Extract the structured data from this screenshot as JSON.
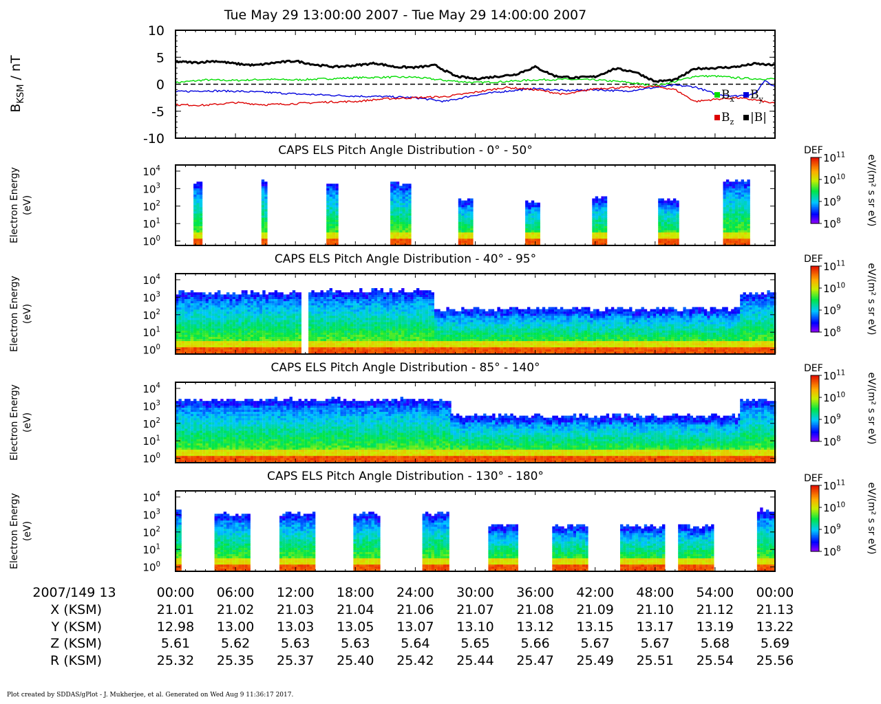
{
  "title": "Tue May 29 13:00:00 2007 - Tue May 29 14:00:00 2007",
  "footer": "Plot created by SDDAS/gPlot - J. Mukherjee, et al.  Generated on Wed Aug 9 11:36:17 2017.",
  "chart_data": [
    {
      "type": "line",
      "ylabel": "B_KSM / nT",
      "ylim": [
        -10,
        10
      ],
      "yticks": [
        10,
        5,
        0,
        -5,
        -10
      ],
      "xlim": [
        0,
        60
      ],
      "zero_line": "dashed",
      "legend": {
        "placement": "bottom-right",
        "entries": [
          "Bx",
          "By",
          "Bz",
          "|B|"
        ]
      },
      "series": [
        {
          "name": "Bx",
          "color": "#00dd00",
          "x": [
            0,
            3,
            6,
            9,
            12,
            15,
            18,
            21,
            24,
            27,
            30,
            33,
            36,
            39,
            42,
            45,
            48,
            50,
            52,
            54,
            56,
            58,
            60
          ],
          "values": [
            0.3,
            0.8,
            0.7,
            0.9,
            0.8,
            1.0,
            1.2,
            1.3,
            1.3,
            0.7,
            0.3,
            0.5,
            0.8,
            0.9,
            0.8,
            0.4,
            -0.3,
            0.5,
            1.5,
            1.5,
            1.2,
            1.0,
            1.0
          ]
        },
        {
          "name": "By",
          "color": "#0000dd",
          "x": [
            0,
            3,
            6,
            9,
            12,
            15,
            18,
            21,
            24,
            27,
            30,
            33,
            36,
            39,
            42,
            45,
            48,
            50,
            52,
            54,
            56,
            58,
            59,
            60
          ],
          "values": [
            -1.4,
            -1.2,
            -1.3,
            -1.5,
            -1.8,
            -2.0,
            -2.2,
            -2.3,
            -2.5,
            -3.2,
            -2.0,
            -1.3,
            -0.8,
            -1.2,
            -1.0,
            -1.3,
            -0.6,
            -0.2,
            -0.5,
            -1.8,
            -2.2,
            -1.8,
            0.8,
            -0.5
          ]
        },
        {
          "name": "Bz",
          "color": "#dd0000",
          "x": [
            0,
            3,
            6,
            9,
            12,
            15,
            18,
            21,
            24,
            27,
            30,
            33,
            36,
            39,
            42,
            45,
            48,
            50,
            52,
            54,
            56,
            58,
            60
          ],
          "values": [
            -3.8,
            -3.9,
            -3.4,
            -3.8,
            -3.6,
            -3.3,
            -3.2,
            -2.7,
            -2.5,
            -2.3,
            -1.5,
            -0.6,
            -1.0,
            -1.9,
            -0.8,
            -0.6,
            -0.4,
            -1.0,
            -3.2,
            -2.8,
            -2.5,
            -2.9,
            -3.6
          ]
        },
        {
          "name": "|B|",
          "color": "#000000",
          "x": [
            0,
            2,
            4,
            6,
            8,
            10,
            12,
            14,
            16,
            18,
            20,
            22,
            24,
            26,
            28,
            30,
            32,
            34,
            36,
            38,
            40,
            42,
            44,
            46,
            48,
            50,
            52,
            54,
            56,
            58,
            60
          ],
          "values": [
            4.2,
            4.0,
            4.3,
            3.8,
            3.5,
            4.0,
            4.3,
            3.6,
            3.2,
            3.5,
            3.9,
            3.2,
            3.1,
            3.5,
            1.5,
            1.0,
            1.4,
            1.8,
            3.2,
            1.5,
            1.2,
            1.4,
            2.9,
            2.3,
            0.5,
            0.8,
            2.9,
            3.0,
            3.2,
            3.8,
            3.5
          ]
        }
      ]
    },
    {
      "type": "heatmap",
      "title": "CAPS ELS Pitch Angle Distribution - 0° - 50°",
      "ylabel": "Electron Energy (eV)",
      "yscale": "log",
      "yticks": [
        "10^4",
        "10^3",
        "10^2",
        "10^1",
        "10^0"
      ],
      "colorbar": {
        "label": "DEF",
        "unit": "eV/(m² s sr eV)",
        "ticks": [
          "10^11",
          "10^10",
          "10^9",
          "10^8"
        ]
      },
      "segments": [
        {
          "start": 1.8,
          "end": 2.5,
          "top_log": 3.3
        },
        {
          "start": 8.6,
          "end": 9.2,
          "top_log": 3.3
        },
        {
          "start": 15.1,
          "end": 16.2,
          "top_log": 3.3
        },
        {
          "start": 21.5,
          "end": 23.5,
          "top_log": 3.2
        },
        {
          "start": 28.3,
          "end": 29.8,
          "top_log": 2.3
        },
        {
          "start": 35.0,
          "end": 36.2,
          "top_log": 2.2
        },
        {
          "start": 41.7,
          "end": 42.9,
          "top_log": 2.4
        },
        {
          "start": 48.3,
          "end": 50.3,
          "top_log": 2.4
        },
        {
          "start": 54.8,
          "end": 57.2,
          "top_log": 3.4
        }
      ]
    },
    {
      "type": "heatmap",
      "title": "CAPS ELS Pitch Angle Distribution - 40° - 95°",
      "ylabel": "Electron Energy (eV)",
      "yscale": "log",
      "yticks": [
        "10^4",
        "10^3",
        "10^2",
        "10^1",
        "10^0"
      ],
      "colorbar": {
        "label": "DEF",
        "unit": "eV/(m² s sr eV)",
        "ticks": [
          "10^11",
          "10^10",
          "10^9",
          "10^8"
        ]
      },
      "segments": [
        {
          "start": 0,
          "end": 12.4,
          "top_log": 3.2
        },
        {
          "start": 13.3,
          "end": 25.9,
          "top_log": 3.3
        },
        {
          "start": 25.9,
          "end": 56.5,
          "top_log": 2.3
        },
        {
          "start": 56.5,
          "end": 60,
          "top_log": 3.2
        }
      ]
    },
    {
      "type": "heatmap",
      "title": "CAPS ELS Pitch Angle Distribution - 85° - 140°",
      "ylabel": "Electron Energy (eV)",
      "yscale": "log",
      "yticks": [
        "10^4",
        "10^3",
        "10^2",
        "10^1",
        "10^0"
      ],
      "colorbar": {
        "label": "DEF",
        "unit": "eV/(m² s sr eV)",
        "ticks": [
          "10^11",
          "10^10",
          "10^9",
          "10^8"
        ]
      },
      "segments": [
        {
          "start": 0,
          "end": 27.5,
          "top_log": 3.3
        },
        {
          "start": 27.5,
          "end": 56.5,
          "top_log": 2.4
        },
        {
          "start": 56.5,
          "end": 60,
          "top_log": 3.3
        }
      ]
    },
    {
      "type": "heatmap",
      "title": "CAPS ELS Pitch Angle Distribution - 130° - 180°",
      "ylabel": "Electron Energy (eV)",
      "yscale": "log",
      "yticks": [
        "10^4",
        "10^3",
        "10^2",
        "10^1",
        "10^0"
      ],
      "colorbar": {
        "label": "DEF",
        "unit": "eV/(m² s sr eV)",
        "ticks": [
          "10^11",
          "10^10",
          "10^9",
          "10^8"
        ]
      },
      "segments": [
        {
          "start": 0,
          "end": 0.6,
          "top_log": 3.3
        },
        {
          "start": 3.9,
          "end": 7.3,
          "top_log": 3.0
        },
        {
          "start": 10.4,
          "end": 14.0,
          "top_log": 3.0
        },
        {
          "start": 17.8,
          "end": 20.4,
          "top_log": 3.0
        },
        {
          "start": 24.7,
          "end": 27.4,
          "top_log": 3.0
        },
        {
          "start": 31.3,
          "end": 34.2,
          "top_log": 2.3
        },
        {
          "start": 37.7,
          "end": 41.1,
          "top_log": 2.3
        },
        {
          "start": 44.5,
          "end": 48.7,
          "top_log": 2.3
        },
        {
          "start": 50.3,
          "end": 53.8,
          "top_log": 2.3
        },
        {
          "start": 58.2,
          "end": 59.7,
          "top_log": 3.2
        }
      ]
    }
  ],
  "time_axis": {
    "label": "2007/149 13",
    "ticks": [
      "00:00",
      "06:00",
      "12:00",
      "18:00",
      "24:00",
      "30:00",
      "36:00",
      "42:00",
      "48:00",
      "54:00",
      "00:00"
    ]
  },
  "ephemeris": [
    {
      "label": "X (KSM)",
      "values": [
        "21.01",
        "21.02",
        "21.03",
        "21.04",
        "21.06",
        "21.07",
        "21.08",
        "21.09",
        "21.10",
        "21.12",
        "21.13"
      ]
    },
    {
      "label": "Y (KSM)",
      "values": [
        "12.98",
        "13.00",
        "13.03",
        "13.05",
        "13.07",
        "13.10",
        "13.12",
        "13.15",
        "13.17",
        "13.19",
        "13.22"
      ]
    },
    {
      "label": "Z (KSM)",
      "values": [
        "5.61",
        "5.62",
        "5.63",
        "5.63",
        "5.64",
        "5.65",
        "5.66",
        "5.67",
        "5.67",
        "5.68",
        "5.69"
      ]
    },
    {
      "label": "R (KSM)",
      "values": [
        "25.32",
        "25.35",
        "25.37",
        "25.40",
        "25.42",
        "25.44",
        "25.47",
        "25.49",
        "25.51",
        "25.54",
        "25.56"
      ]
    }
  ]
}
